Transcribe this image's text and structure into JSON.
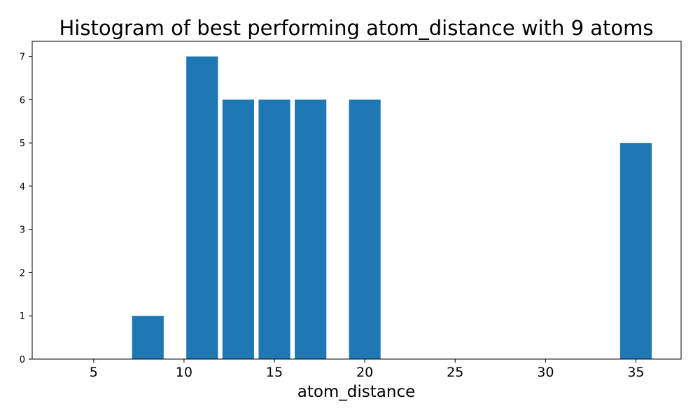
{
  "chart_data": {
    "type": "bar",
    "title": "Histogram of best performing atom_distance with 9 atoms",
    "xlabel": "atom_distance",
    "ylabel": "",
    "x": [
      8,
      11,
      13,
      15,
      17,
      20,
      35
    ],
    "values": [
      1,
      7,
      6,
      6,
      6,
      6,
      5
    ],
    "bar_width": 1.75,
    "xlim": [
      1.6,
      37.5
    ],
    "ylim": [
      0,
      7.35
    ],
    "xticks": [
      5,
      10,
      15,
      20,
      25,
      30,
      35
    ],
    "yticks": [
      0,
      1,
      2,
      3,
      4,
      5,
      6,
      7
    ],
    "grid": false,
    "bar_color": "#1f77b4"
  }
}
